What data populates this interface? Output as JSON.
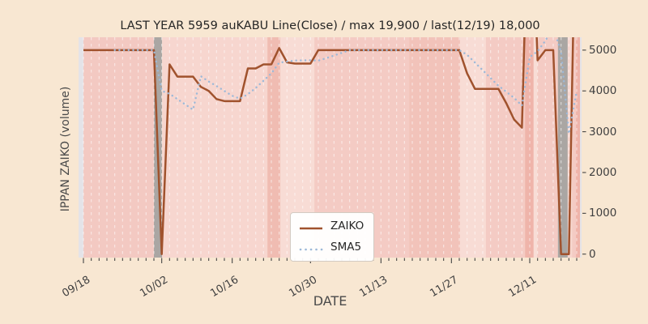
{
  "title": "LAST YEAR 5959 auKABU Line(Close) / max 19,900 / last(12/19) 18,000",
  "axes": {
    "x_label": "DATE",
    "y_label": "IPPAN ZAIKO (volume)",
    "y_ticks": [
      0,
      1000,
      2000,
      3000,
      4000,
      5000
    ],
    "x_tick_labels": [
      "09/18",
      "10/02",
      "10/16",
      "10/30",
      "11/13",
      "11/27",
      "12/11"
    ],
    "x_tick_indices": [
      0,
      10,
      19,
      29,
      38,
      47,
      57
    ]
  },
  "legend": {
    "items": [
      {
        "label": "ZAIKO",
        "color": "#a0522d",
        "style": "solid"
      },
      {
        "label": "SMA5",
        "color": "#9db9d8",
        "style": "dotted"
      }
    ]
  },
  "colors": {
    "figure_bg": "#f8e7d2",
    "zaiko_line": "#a0522d",
    "sma5_line": "#9db9d8",
    "gridline": "rgba(255,255,255,0.55)",
    "tick_mark": "#444444",
    "stockout_band": "#aaa6a3",
    "edge_strip": "#e4e3e8"
  },
  "chart_data": {
    "type": "line",
    "title": "LAST YEAR 5959 auKABU Line(Close) / max 19,900 / last(12/19) 18,000",
    "xlabel": "DATE",
    "ylabel": "IPPAN ZAIKO (volume)",
    "ylim": [
      -85,
      5315
    ],
    "grid": "vertical white dashed line per trading day",
    "legend_position": "lower center",
    "x": [
      "09/18",
      "09/19",
      "09/20",
      "09/21",
      "09/22",
      "09/25",
      "09/26",
      "09/27",
      "09/28",
      "09/29",
      "10/02",
      "10/03",
      "10/04",
      "10/05",
      "10/06",
      "10/10",
      "10/11",
      "10/12",
      "10/13",
      "10/16",
      "10/17",
      "10/18",
      "10/19",
      "10/20",
      "10/23",
      "10/24",
      "10/25",
      "10/26",
      "10/27",
      "10/30",
      "10/31",
      "11/01",
      "11/02",
      "11/06",
      "11/07",
      "11/08",
      "11/09",
      "11/10",
      "11/13",
      "11/14",
      "11/15",
      "11/16",
      "11/17",
      "11/20",
      "11/21",
      "11/22",
      "11/24",
      "11/27",
      "11/28",
      "11/29",
      "11/30",
      "12/01",
      "12/04",
      "12/05",
      "12/06",
      "12/07",
      "12/08",
      "12/11",
      "12/12",
      "12/13",
      "12/14",
      "12/15",
      "12/18",
      "12/19"
    ],
    "series": [
      {
        "name": "ZAIKO",
        "values": [
          5000,
          5000,
          5000,
          5000,
          5000,
          5000,
          5000,
          5000,
          5000,
          5000,
          0,
          4650,
          4350,
          4350,
          4350,
          4100,
          4000,
          3800,
          3750,
          3750,
          3750,
          4550,
          4550,
          4650,
          4650,
          5050,
          4700,
          4670,
          4670,
          4670,
          5000,
          5000,
          5000,
          5000,
          5000,
          5000,
          5000,
          5000,
          5000,
          5000,
          5000,
          5000,
          5000,
          5000,
          5000,
          5000,
          5000,
          5000,
          5000,
          4430,
          4050,
          4050,
          4050,
          4050,
          3700,
          3300,
          3100,
          10000,
          4750,
          5000,
          5000,
          0,
          0,
          10000
        ]
      },
      {
        "name": "SMA5",
        "derived": "5-point moving average of ZAIKO, plotted from 5th trading day"
      }
    ],
    "bands": [
      {
        "from": -0.62,
        "to": 0.0,
        "color": "#e4e3e8"
      },
      {
        "from": 0.0,
        "to": 9.0,
        "color": "#f3c9c2"
      },
      {
        "from": 9.0,
        "to": 10.05,
        "color": "#aaa6a3"
      },
      {
        "from": 10.05,
        "to": 23.5,
        "color": "#f7d6cf"
      },
      {
        "from": 23.5,
        "to": 25.15,
        "color": "#f0bcb2"
      },
      {
        "from": 25.15,
        "to": 29.5,
        "color": "#f8dcd5"
      },
      {
        "from": 29.5,
        "to": 41.6,
        "color": "#f4cbc4"
      },
      {
        "from": 41.6,
        "to": 48.1,
        "color": "#f2c3ba"
      },
      {
        "from": 48.1,
        "to": 51.4,
        "color": "#f8dcd5"
      },
      {
        "from": 51.4,
        "to": 56.4,
        "color": "#f4cbc4"
      },
      {
        "from": 56.4,
        "to": 57.5,
        "color": "#efb4aa"
      },
      {
        "from": 57.5,
        "to": 57.95,
        "color": "#f8ddd6"
      },
      {
        "from": 57.95,
        "to": 60.6,
        "color": "#f4cbc4"
      },
      {
        "from": 60.6,
        "to": 61.85,
        "color": "#aaa6a3"
      },
      {
        "from": 61.85,
        "to": 62.4,
        "color": "#f7d6ce"
      },
      {
        "from": 62.4,
        "to": 62.9,
        "color": "#f4cbc4"
      },
      {
        "from": 62.9,
        "to": 63.42,
        "color": "#efb4aa"
      },
      {
        "from": 63.42,
        "to": 63.65,
        "color": "#e4e3e8"
      }
    ]
  }
}
